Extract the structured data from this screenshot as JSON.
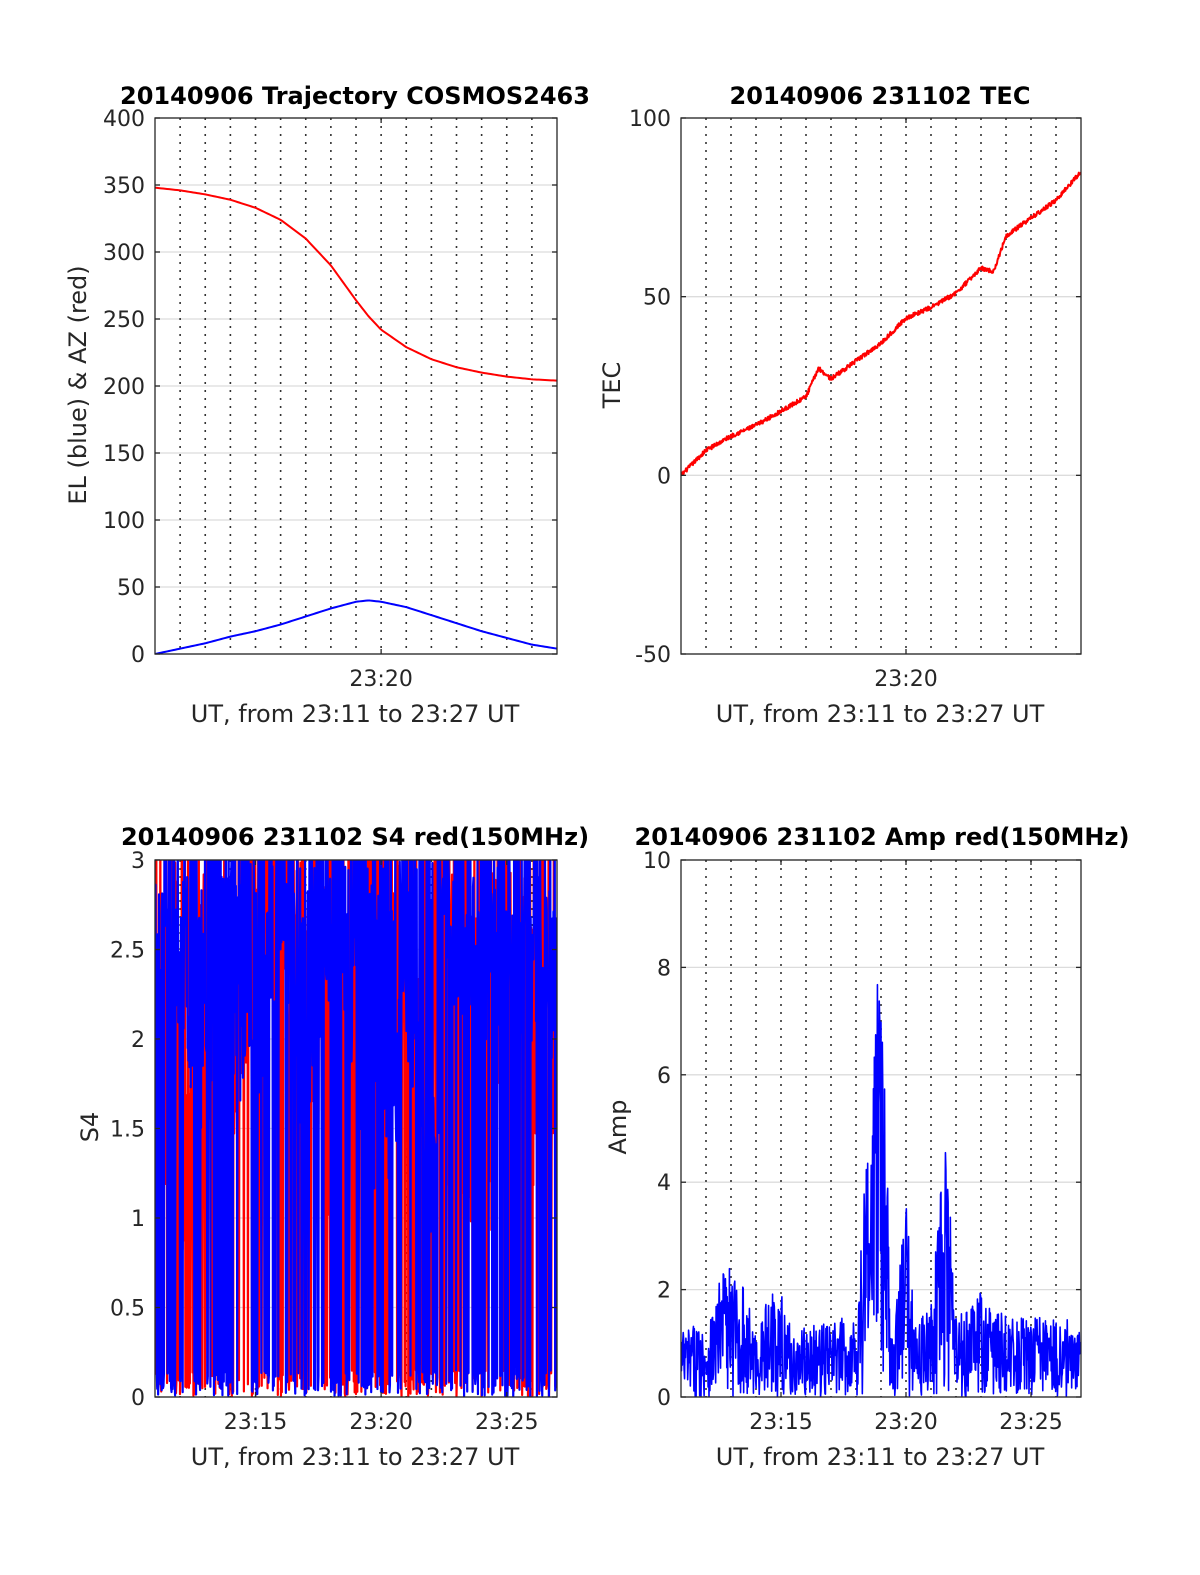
{
  "colors": {
    "red": "#ff0000",
    "blue": "#0000ff",
    "axis": "#262626",
    "grid": "#dcdcdc"
  },
  "chart_data": [
    {
      "type": "line",
      "title": "20140906 Trajectory COSMOS2463",
      "xlabel": "UT, from 23:11 to 23:27 UT",
      "ylabel": "EL (blue) & AZ (red)",
      "xlim": [
        "23:11",
        "23:27"
      ],
      "ylim": [
        0,
        400
      ],
      "yticks": [
        "0",
        "50",
        "100",
        "150",
        "200",
        "250",
        "300",
        "350",
        "400"
      ],
      "xticks": [
        "23:20"
      ],
      "grid": true,
      "series": [
        {
          "color": "#ff0000",
          "x": [
            "23:11",
            "23:12",
            "23:13",
            "23:14",
            "23:15",
            "23:16",
            "23:17",
            "23:18",
            "23:18:30",
            "23:19",
            "23:19:30",
            "23:20",
            "23:21",
            "23:22",
            "23:23",
            "23:24",
            "23:25",
            "23:26",
            "23:27"
          ],
          "values": [
            348,
            346,
            343,
            339,
            333,
            324,
            310,
            290,
            277,
            264,
            252,
            242,
            229,
            220,
            214,
            210,
            207,
            205,
            204
          ]
        },
        {
          "color": "#0000ff",
          "x": [
            "23:11",
            "23:12",
            "23:13",
            "23:14",
            "23:15",
            "23:16",
            "23:17",
            "23:18",
            "23:19",
            "23:19:30",
            "23:20",
            "23:21",
            "23:22",
            "23:23",
            "23:24",
            "23:25",
            "23:26",
            "23:27"
          ],
          "values": [
            0,
            4,
            8,
            13,
            17,
            22,
            28,
            34,
            39,
            40,
            39,
            35,
            29,
            23,
            17,
            12,
            7,
            4
          ]
        }
      ]
    },
    {
      "type": "line",
      "title": "20140906 231102 TEC",
      "xlabel": "UT, from 23:11 to 23:27 UT",
      "ylabel": "TEC",
      "xlim": [
        "23:11",
        "23:27"
      ],
      "ylim": [
        -50,
        100
      ],
      "yticks": [
        "-50",
        "0",
        "50",
        "100"
      ],
      "xticks": [
        "23:20"
      ],
      "grid": true,
      "series": [
        {
          "color": "#ff0000",
          "x": [
            "23:11",
            "23:12",
            "23:13",
            "23:14",
            "23:15",
            "23:16",
            "23:16:30",
            "23:17",
            "23:18",
            "23:19",
            "23:20",
            "23:21",
            "23:22",
            "23:23",
            "23:23:30",
            "23:24",
            "23:25",
            "23:26",
            "23:27"
          ],
          "values": [
            0,
            7,
            11,
            14,
            18,
            22,
            30,
            27,
            32,
            37,
            44,
            47,
            51,
            58,
            57,
            67,
            72,
            77,
            85
          ]
        }
      ]
    },
    {
      "type": "line",
      "title": "20140906 231102 S4 red(150MHz)",
      "xlabel": "UT, from 23:11 to 23:27 UT",
      "ylabel": "S4",
      "xlim": [
        "23:11",
        "23:27"
      ],
      "ylim": [
        0,
        3
      ],
      "yticks": [
        "0",
        "0.5",
        "1",
        "1.5",
        "2",
        "2.5",
        "3"
      ],
      "xticks": [
        "23:15",
        "23:20",
        "23:25"
      ],
      "grid": true,
      "series": [
        {
          "color": "#ff0000",
          "x": [
            "23:11",
            "23:12",
            "23:13",
            "23:14",
            "23:15",
            "23:16",
            "23:17",
            "23:18",
            "23:19",
            "23:20",
            "23:21",
            "23:22",
            "23:23",
            "23:24",
            "23:25",
            "23:26",
            "23:27"
          ],
          "values": [
            1.5,
            1.2,
            1.6,
            1.4,
            2.8,
            2.7,
            2.2,
            1.3,
            2.0,
            2.5,
            2.4,
            2.0,
            1.4,
            1.3,
            1.5,
            1.6,
            1.8
          ]
        },
        {
          "color": "#0000ff",
          "x": [
            "23:11",
            "23:12",
            "23:13",
            "23:14",
            "23:15",
            "23:16",
            "23:17",
            "23:18",
            "23:19",
            "23:20",
            "23:21",
            "23:22",
            "23:23",
            "23:24",
            "23:25",
            "23:26",
            "23:27"
          ],
          "values": [
            2.4,
            2.2,
            1.9,
            2.3,
            1.8,
            2.9,
            1.7,
            2.4,
            2.0,
            1.4,
            2.2,
            1.3,
            2.6,
            2.4,
            2.5,
            2.4,
            2.3
          ]
        }
      ]
    },
    {
      "type": "line",
      "title": "20140906 231102 Amp red(150MHz)",
      "xlabel": "UT, from 23:11 to 23:27 UT",
      "ylabel": "Amp",
      "xlim": [
        "23:11",
        "23:27"
      ],
      "ylim": [
        0,
        10
      ],
      "yticks": [
        "0",
        "2",
        "4",
        "6",
        "8",
        "10"
      ],
      "xticks": [
        "23:15",
        "23:20",
        "23:25"
      ],
      "grid": true,
      "series": [
        {
          "color": "#0000ff",
          "x": [
            "23:11",
            "23:12",
            "23:12:45",
            "23:13:30",
            "23:14",
            "23:14:45",
            "23:15:30",
            "23:16",
            "23:17",
            "23:18",
            "23:18:55",
            "23:19:30",
            "23:20",
            "23:20:30",
            "23:21",
            "23:21:35",
            "23:22",
            "23:22:55",
            "23:24",
            "23:25",
            "23:26",
            "23:27"
          ],
          "values": [
            1.3,
            1.4,
            2.5,
            2.1,
            1.2,
            2.3,
            1.2,
            1.3,
            1.4,
            1.6,
            8.8,
            1.4,
            3.6,
            1.4,
            1.8,
            4.9,
            1.5,
            2.0,
            1.5,
            1.6,
            1.5,
            1.4
          ]
        }
      ]
    }
  ]
}
